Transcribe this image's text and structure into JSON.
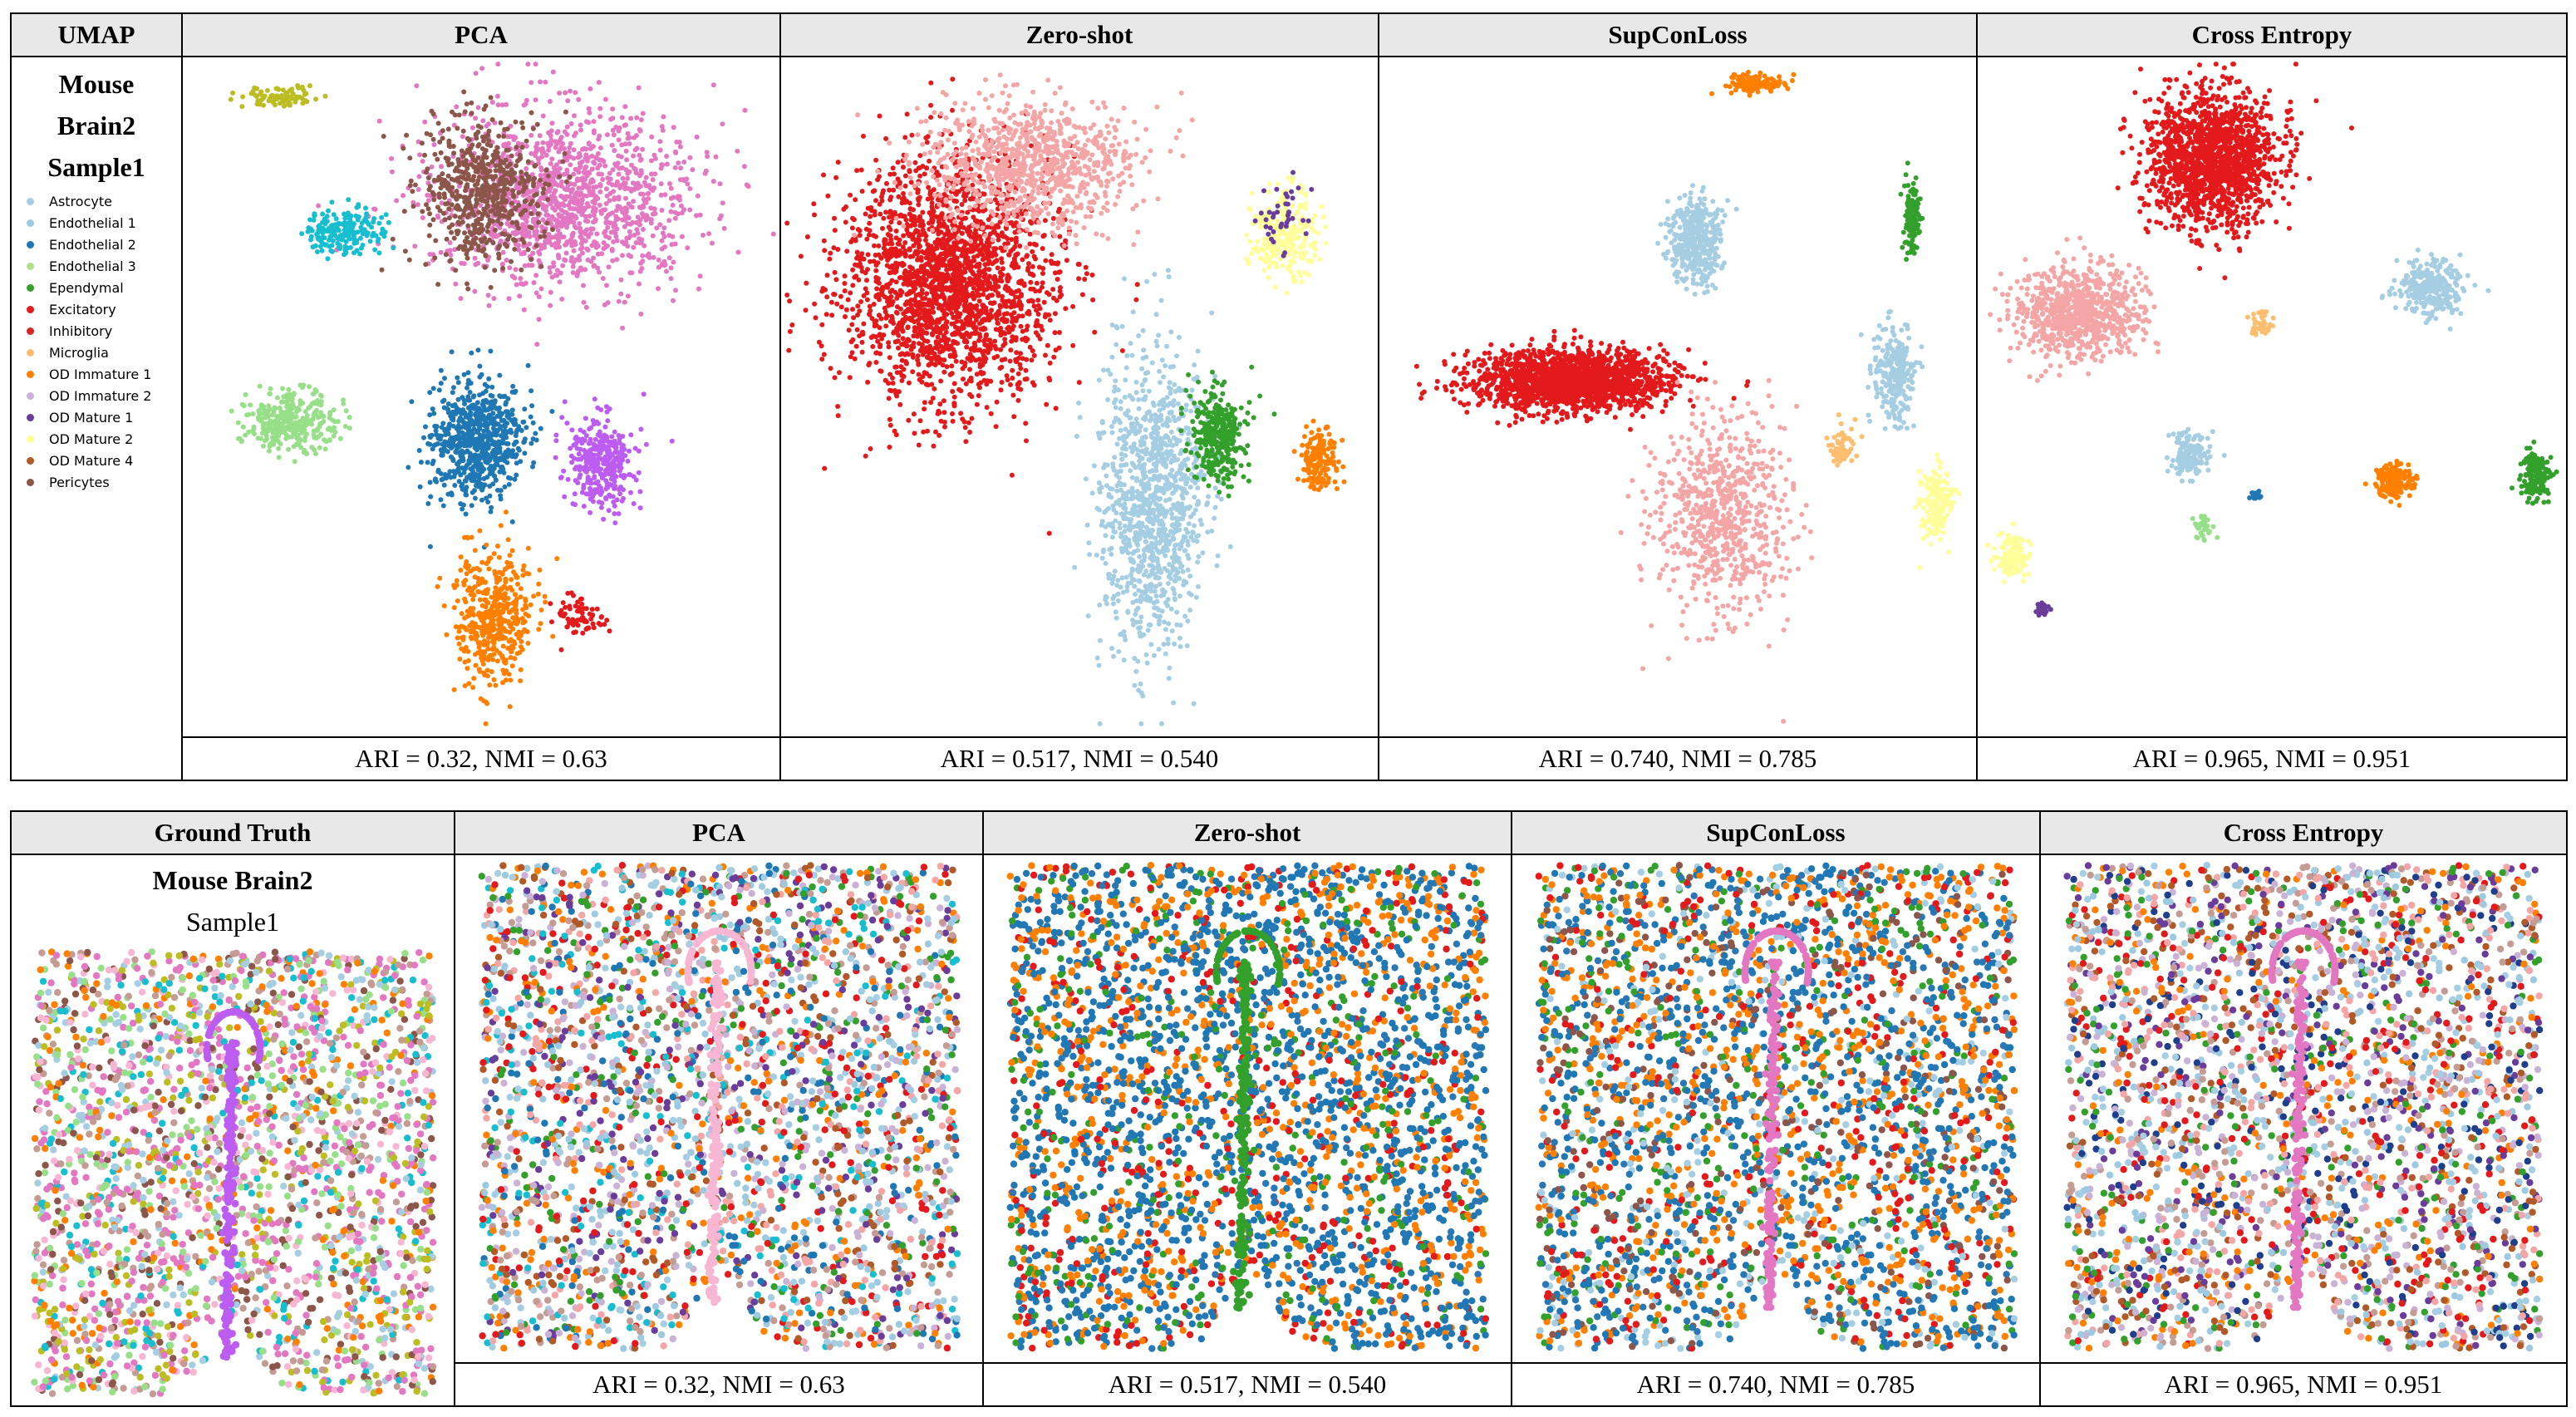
{
  "top_table": {
    "corner_label": "UMAP",
    "side_title_lines": [
      "Mouse",
      "Brain2",
      "Sample1"
    ],
    "headers": [
      "PCA",
      "Zero-shot",
      "SupConLoss",
      "Cross Entropy"
    ],
    "metrics": [
      "ARI = 0.32, NMI = 0.63",
      "ARI = 0.517, NMI = 0.540",
      "ARI = 0.740, NMI = 0.785",
      "ARI = 0.965, NMI = 0.951"
    ]
  },
  "bottom_table": {
    "first_header": "Ground Truth",
    "gt_title_bold": "Mouse Brain2",
    "gt_title_sub": "Sample1",
    "headers": [
      "PCA",
      "Zero-shot",
      "SupConLoss",
      "Cross Entropy"
    ],
    "metrics": [
      "ARI = 0.32, NMI = 0.63",
      "ARI = 0.517, NMI = 0.540",
      "ARI = 0.740, NMI = 0.785",
      "ARI = 0.965, NMI = 0.951"
    ]
  },
  "legend": [
    {
      "label": "Astrocyte",
      "color": "#a6cee3"
    },
    {
      "label": "Endothelial 1",
      "color": "#9ecae1"
    },
    {
      "label": "Endothelial 2",
      "color": "#1f78b4"
    },
    {
      "label": "Endothelial 3",
      "color": "#b2df8a"
    },
    {
      "label": "Ependymal",
      "color": "#33a02c"
    },
    {
      "label": "Excitatory",
      "color": "#e31a1c"
    },
    {
      "label": "Inhibitory",
      "color": "#d62728"
    },
    {
      "label": "Microglia",
      "color": "#fdbf6f"
    },
    {
      "label": "OD Immature 1",
      "color": "#ff7f00"
    },
    {
      "label": "OD Immature 2",
      "color": "#cab2d6"
    },
    {
      "label": "OD Mature 1",
      "color": "#6a3d9a"
    },
    {
      "label": "OD Mature 2",
      "color": "#ffff99"
    },
    {
      "label": "OD Mature 4",
      "color": "#b15928"
    },
    {
      "label": "Pericytes",
      "color": "#8c564b"
    }
  ],
  "chart_data": [
    {
      "type": "scatter",
      "title": "UMAP PCA",
      "clusters": [
        {
          "color": "#e377c2",
          "center": [
            0.64,
            0.21
          ],
          "spread": [
            0.2,
            0.12
          ],
          "n": 1300
        },
        {
          "color": "#8c564b",
          "center": [
            0.5,
            0.2
          ],
          "spread": [
            0.09,
            0.1
          ],
          "n": 600
        },
        {
          "color": "#1f78b4",
          "center": [
            0.49,
            0.57
          ],
          "spread": [
            0.07,
            0.08
          ],
          "n": 700
        },
        {
          "color": "#ff7f00",
          "center": [
            0.52,
            0.83
          ],
          "spread": [
            0.06,
            0.09
          ],
          "n": 450
        },
        {
          "color": "#bc5cf0",
          "center": [
            0.7,
            0.6
          ],
          "spread": [
            0.05,
            0.06
          ],
          "n": 350
        },
        {
          "color": "#98df8a",
          "center": [
            0.18,
            0.54
          ],
          "spread": [
            0.07,
            0.04
          ],
          "n": 320
        },
        {
          "color": "#17becf",
          "center": [
            0.27,
            0.26
          ],
          "spread": [
            0.06,
            0.03
          ],
          "n": 200
        },
        {
          "color": "#bcbd22",
          "center": [
            0.16,
            0.06
          ],
          "spread": [
            0.06,
            0.015
          ],
          "n": 80
        },
        {
          "color": "#e31a1c",
          "center": [
            0.66,
            0.83
          ],
          "spread": [
            0.04,
            0.03
          ],
          "n": 70
        }
      ]
    },
    {
      "type": "scatter",
      "title": "UMAP Zero-shot",
      "clusters": [
        {
          "color": "#e31a1c",
          "center": [
            0.28,
            0.33
          ],
          "spread": [
            0.16,
            0.16
          ],
          "n": 2200
        },
        {
          "color": "#f4a5a5",
          "center": [
            0.42,
            0.16
          ],
          "spread": [
            0.16,
            0.09
          ],
          "n": 900
        },
        {
          "color": "#a6cee3",
          "center": [
            0.62,
            0.66
          ],
          "spread": [
            0.08,
            0.2
          ],
          "n": 1100
        },
        {
          "color": "#33a02c",
          "center": [
            0.73,
            0.56
          ],
          "spread": [
            0.04,
            0.06
          ],
          "n": 350
        },
        {
          "color": "#ffff99",
          "center": [
            0.84,
            0.26
          ],
          "spread": [
            0.05,
            0.06
          ],
          "n": 250
        },
        {
          "color": "#ff7f00",
          "center": [
            0.9,
            0.6
          ],
          "spread": [
            0.03,
            0.04
          ],
          "n": 150
        },
        {
          "color": "#6a3d9a",
          "center": [
            0.84,
            0.24
          ],
          "spread": [
            0.04,
            0.05
          ],
          "n": 40
        }
      ]
    },
    {
      "type": "scatter",
      "title": "UMAP SupConLoss",
      "clusters": [
        {
          "color": "#e31a1c",
          "center": [
            0.32,
            0.48
          ],
          "spread": [
            0.15,
            0.04
          ],
          "n": 1800
        },
        {
          "color": "#f4a5a5",
          "center": [
            0.57,
            0.68
          ],
          "spread": [
            0.1,
            0.13
          ],
          "n": 700
        },
        {
          "color": "#a6cee3",
          "center": [
            0.53,
            0.27
          ],
          "spread": [
            0.04,
            0.06
          ],
          "n": 400
        },
        {
          "color": "#a6cee3",
          "center": [
            0.86,
            0.47
          ],
          "spread": [
            0.03,
            0.07
          ],
          "n": 250
        },
        {
          "color": "#ff7f00",
          "center": [
            0.63,
            0.04
          ],
          "spread": [
            0.04,
            0.012
          ],
          "n": 150
        },
        {
          "color": "#33a02c",
          "center": [
            0.89,
            0.24
          ],
          "spread": [
            0.012,
            0.05
          ],
          "n": 120
        },
        {
          "color": "#ffff99",
          "center": [
            0.93,
            0.66
          ],
          "spread": [
            0.025,
            0.05
          ],
          "n": 160
        },
        {
          "color": "#fdbf6f",
          "center": [
            0.77,
            0.58
          ],
          "spread": [
            0.02,
            0.03
          ],
          "n": 60
        }
      ]
    },
    {
      "type": "scatter",
      "title": "UMAP Cross Entropy",
      "clusters": [
        {
          "color": "#e31a1c",
          "center": [
            0.4,
            0.15
          ],
          "spread": [
            0.1,
            0.09
          ],
          "n": 1500
        },
        {
          "color": "#f4a5a5",
          "center": [
            0.17,
            0.38
          ],
          "spread": [
            0.1,
            0.06
          ],
          "n": 800
        },
        {
          "color": "#a6cee3",
          "center": [
            0.77,
            0.34
          ],
          "spread": [
            0.05,
            0.035
          ],
          "n": 300
        },
        {
          "color": "#a6cee3",
          "center": [
            0.36,
            0.59
          ],
          "spread": [
            0.03,
            0.03
          ],
          "n": 150
        },
        {
          "color": "#ff7f00",
          "center": [
            0.71,
            0.63
          ],
          "spread": [
            0.03,
            0.025
          ],
          "n": 150
        },
        {
          "color": "#33a02c",
          "center": [
            0.95,
            0.62
          ],
          "spread": [
            0.025,
            0.03
          ],
          "n": 150
        },
        {
          "color": "#ffff99",
          "center": [
            0.06,
            0.74
          ],
          "spread": [
            0.025,
            0.03
          ],
          "n": 120
        },
        {
          "color": "#fdbf6f",
          "center": [
            0.48,
            0.4
          ],
          "spread": [
            0.015,
            0.02
          ],
          "n": 40
        },
        {
          "color": "#98df8a",
          "center": [
            0.38,
            0.7
          ],
          "spread": [
            0.015,
            0.02
          ],
          "n": 40
        },
        {
          "color": "#6a3d9a",
          "center": [
            0.11,
            0.82
          ],
          "spread": [
            0.01,
            0.01
          ],
          "n": 25
        },
        {
          "color": "#1f78b4",
          "center": [
            0.47,
            0.65
          ],
          "spread": [
            0.01,
            0.008
          ],
          "n": 20
        }
      ]
    },
    {
      "type": "scatter",
      "title": "Spatial Ground Truth",
      "palette": [
        "#e377c2",
        "#8c564b",
        "#e377c2",
        "#a6cee3",
        "#98df8a",
        "#17becf",
        "#ff7f00",
        "#f7b6d2",
        "#c49c94",
        "#bcbd22"
      ],
      "midline_color": "#bc5cf0",
      "n": 2600
    },
    {
      "type": "scatter",
      "title": "Spatial PCA",
      "palette": [
        "#a6cee3",
        "#1f78b4",
        "#cab2d6",
        "#f4a5a5",
        "#6a3d9a",
        "#e31a1c",
        "#33a02c",
        "#b15928",
        "#17becf",
        "#ff7f00",
        "#9ecae1",
        "#c49c94"
      ],
      "midline_color": "#f7b6d2",
      "n": 3200
    },
    {
      "type": "scatter",
      "title": "Spatial Zero-shot",
      "palette": [
        "#1f78b4",
        "#1f78b4",
        "#1f78b4",
        "#ff7f00",
        "#ff7f00",
        "#33a02c",
        "#e31a1c",
        "#2878b5"
      ],
      "midline_color": "#33a02c",
      "n": 3400
    },
    {
      "type": "scatter",
      "title": "Spatial SupConLoss",
      "palette": [
        "#1f78b4",
        "#1f78b4",
        "#ff7f00",
        "#ff7f00",
        "#8c564b",
        "#e31a1c",
        "#33a02c",
        "#a6cee3",
        "#2878b5"
      ],
      "midline_color": "#e377c2",
      "n": 3300
    },
    {
      "type": "scatter",
      "title": "Spatial Cross Entropy",
      "palette": [
        "#a6cee3",
        "#cab2d6",
        "#1f3f8c",
        "#e31a1c",
        "#f4a5a5",
        "#9ecae1",
        "#6a3d9a",
        "#33a02c",
        "#ff7f00",
        "#c49c94",
        "#b15928"
      ],
      "midline_color": "#e377c2",
      "n": 3200
    }
  ]
}
